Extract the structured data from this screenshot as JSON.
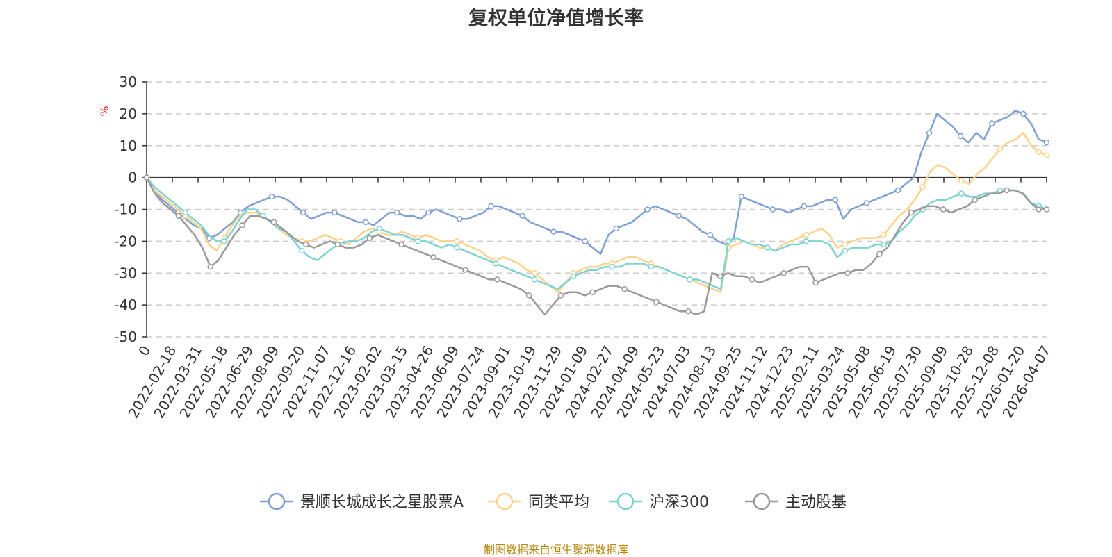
{
  "title": "复权单位净值增长率",
  "source": "制图数据来自恒生聚源数据库",
  "chart_data": {
    "type": "line",
    "ylabel": "%",
    "ylim": [
      -50,
      30
    ],
    "yticks": [
      30,
      20,
      10,
      0,
      -10,
      -20,
      -30,
      -40,
      -50
    ],
    "grid": true,
    "legend": "bottom",
    "x_tick_labels": [
      "0",
      "2022-02-18",
      "2022-03-31",
      "2022-05-18",
      "2022-06-29",
      "2022-08-09",
      "2022-09-20",
      "2022-11-07",
      "2022-12-16",
      "2023-02-02",
      "2023-03-15",
      "2023-04-26",
      "2023-06-09",
      "2023-07-24",
      "2023-09-01",
      "2023-10-19",
      "2023-11-29",
      "2024-01-09",
      "2024-02-27",
      "2024-04-09",
      "2024-05-23",
      "2024-07-03",
      "2024-08-13",
      "2024-09-25",
      "2024-11-12",
      "2024-12-23",
      "2025-02-11",
      "2025-03-24",
      "2025-05-08",
      "2025-06-19",
      "2025-07-30",
      "2025-09-09",
      "2025-10-28",
      "2025-12-08",
      "2026-01-20",
      "2026-04-07"
    ],
    "series": [
      {
        "name": "景顺长城成长之星股票A",
        "color": "#7f9fd4",
        "values": [
          0,
          -4,
          -7,
          -9,
          -11,
          -13,
          -15,
          -16,
          -19,
          -18,
          -16,
          -14,
          -11,
          -9,
          -8,
          -7,
          -6,
          -6,
          -7,
          -9,
          -11,
          -13,
          -12,
          -11,
          -11,
          -12,
          -13,
          -14,
          -14,
          -15,
          -13,
          -11,
          -11,
          -12,
          -12,
          -13,
          -11,
          -10,
          -11,
          -12,
          -13,
          -13,
          -12,
          -11,
          -9,
          -9,
          -10,
          -11,
          -12,
          -14,
          -15,
          -16,
          -17,
          -17,
          -18,
          -19,
          -20,
          -22,
          -24,
          -18,
          -16,
          -15,
          -14,
          -12,
          -10,
          -9,
          -10,
          -11,
          -12,
          -13,
          -15,
          -17,
          -18,
          -20,
          -21,
          -19,
          -6,
          -7,
          -8,
          -9,
          -10,
          -10,
          -11,
          -10,
          -9,
          -9,
          -8,
          -7,
          -7,
          -13,
          -10,
          -9,
          -8,
          -7,
          -6,
          -5,
          -4,
          -2,
          0,
          8,
          14,
          20,
          18,
          16,
          13,
          11,
          14,
          12,
          17,
          18,
          19,
          21,
          20,
          17,
          12,
          11
        ]
      },
      {
        "name": "同类平均",
        "color": "#fbd38d",
        "values": [
          0,
          -4,
          -6,
          -8,
          -10,
          -12,
          -14,
          -16,
          -21,
          -23,
          -19,
          -15,
          -12,
          -11,
          -11,
          -12,
          -14,
          -16,
          -18,
          -19,
          -20,
          -20,
          -19,
          -18,
          -19,
          -20,
          -21,
          -19,
          -17,
          -16,
          -17,
          -18,
          -18,
          -17,
          -18,
          -19,
          -18,
          -19,
          -20,
          -20,
          -20,
          -21,
          -22,
          -23,
          -25,
          -26,
          -25,
          -26,
          -27,
          -29,
          -30,
          -32,
          -34,
          -36,
          -33,
          -30,
          -29,
          -28,
          -28,
          -27,
          -27,
          -26,
          -25,
          -25,
          -26,
          -27,
          -28,
          -29,
          -30,
          -31,
          -32,
          -33,
          -34,
          -35,
          -36,
          -22,
          -21,
          -20,
          -21,
          -22,
          -22,
          -23,
          -21,
          -20,
          -19,
          -18,
          -17,
          -16,
          -18,
          -22,
          -21,
          -20,
          -19,
          -19,
          -19,
          -18,
          -15,
          -12,
          -10,
          -7,
          -3,
          2,
          4,
          3,
          1,
          -1,
          -2,
          1,
          3,
          6,
          9,
          11,
          12,
          14,
          10,
          8,
          7
        ]
      },
      {
        "name": "沪深300",
        "color": "#7dd3cf",
        "values": [
          0,
          -3,
          -5,
          -7,
          -9,
          -11,
          -13,
          -15,
          -18,
          -20,
          -20,
          -17,
          -13,
          -10,
          -10,
          -12,
          -14,
          -16,
          -17,
          -20,
          -23,
          -25,
          -26,
          -24,
          -22,
          -21,
          -20,
          -20,
          -19,
          -17,
          -16,
          -17,
          -18,
          -18,
          -19,
          -20,
          -20,
          -21,
          -22,
          -21,
          -22,
          -23,
          -24,
          -25,
          -26,
          -27,
          -28,
          -29,
          -30,
          -31,
          -32,
          -33,
          -34,
          -35,
          -33,
          -31,
          -30,
          -29,
          -29,
          -28,
          -28,
          -28,
          -27,
          -27,
          -27,
          -28,
          -28,
          -29,
          -30,
          -31,
          -32,
          -32,
          -33,
          -34,
          -35,
          -20,
          -19,
          -20,
          -21,
          -21,
          -22,
          -23,
          -22,
          -21,
          -21,
          -20,
          -20,
          -20,
          -21,
          -25,
          -23,
          -22,
          -22,
          -22,
          -21,
          -21,
          -20,
          -17,
          -15,
          -12,
          -10,
          -8,
          -7,
          -7,
          -6,
          -5,
          -6,
          -6,
          -5,
          -5,
          -4,
          -4,
          -4,
          -5,
          -8,
          -9,
          -10
        ]
      },
      {
        "name": "主动股基",
        "color": "#999999",
        "values": [
          0,
          -5,
          -8,
          -10,
          -12,
          -15,
          -18,
          -22,
          -28,
          -26,
          -22,
          -18,
          -15,
          -12,
          -12,
          -13,
          -14,
          -16,
          -18,
          -20,
          -21,
          -22,
          -21,
          -20,
          -21,
          -22,
          -22,
          -21,
          -19,
          -18,
          -19,
          -20,
          -21,
          -22,
          -23,
          -24,
          -25,
          -26,
          -27,
          -28,
          -29,
          -30,
          -31,
          -32,
          -32,
          -33,
          -34,
          -35,
          -37,
          -40,
          -43,
          -40,
          -37,
          -36,
          -36,
          -37,
          -36,
          -35,
          -34,
          -34,
          -35,
          -36,
          -37,
          -38,
          -39,
          -40,
          -41,
          -42,
          -42,
          -43,
          -42,
          -30,
          -31,
          -30,
          -31,
          -31,
          -32,
          -33,
          -32,
          -31,
          -30,
          -29,
          -28,
          -28,
          -33,
          -32,
          -31,
          -30,
          -30,
          -29,
          -29,
          -27,
          -24,
          -22,
          -18,
          -14,
          -11,
          -10,
          -9,
          -9,
          -10,
          -11,
          -10,
          -9,
          -7,
          -6,
          -5,
          -5,
          -4,
          -4,
          -5,
          -8,
          -10,
          -10
        ]
      }
    ]
  }
}
